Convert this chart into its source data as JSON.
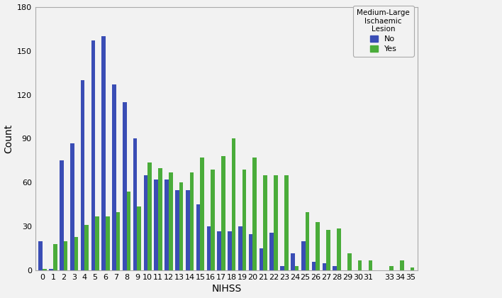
{
  "nihss_values": [
    0,
    1,
    2,
    3,
    4,
    5,
    6,
    7,
    8,
    9,
    10,
    11,
    12,
    13,
    14,
    15,
    16,
    17,
    18,
    19,
    20,
    21,
    22,
    23,
    24,
    25,
    26,
    27,
    28,
    29,
    30,
    31,
    33,
    34,
    35
  ],
  "blue_no": [
    20,
    1,
    75,
    87,
    130,
    157,
    160,
    127,
    115,
    90,
    65,
    62,
    62,
    55,
    55,
    45,
    30,
    27,
    27,
    30,
    25,
    15,
    26,
    3,
    12,
    20,
    6,
    5,
    3,
    0,
    0,
    0,
    0,
    0,
    0
  ],
  "green_yes": [
    1,
    18,
    20,
    23,
    31,
    37,
    37,
    40,
    54,
    44,
    74,
    70,
    67,
    60,
    67,
    77,
    69,
    78,
    90,
    69,
    77,
    65,
    65,
    65,
    3,
    40,
    33,
    28,
    29,
    12,
    7,
    7,
    3,
    7,
    2
  ],
  "blue_color": "#3a4db5",
  "green_color": "#4aac3a",
  "xlabel": "NIHSS",
  "ylabel": "Count",
  "ylim": [
    0,
    180
  ],
  "yticks": [
    0,
    30,
    60,
    90,
    120,
    150,
    180
  ],
  "legend_title": "Medium-Large\nIschaemic\nLesion",
  "legend_labels": [
    "No",
    "Yes"
  ],
  "background_color": "#f2f2f2",
  "axis_fontsize": 10,
  "tick_fontsize": 8
}
